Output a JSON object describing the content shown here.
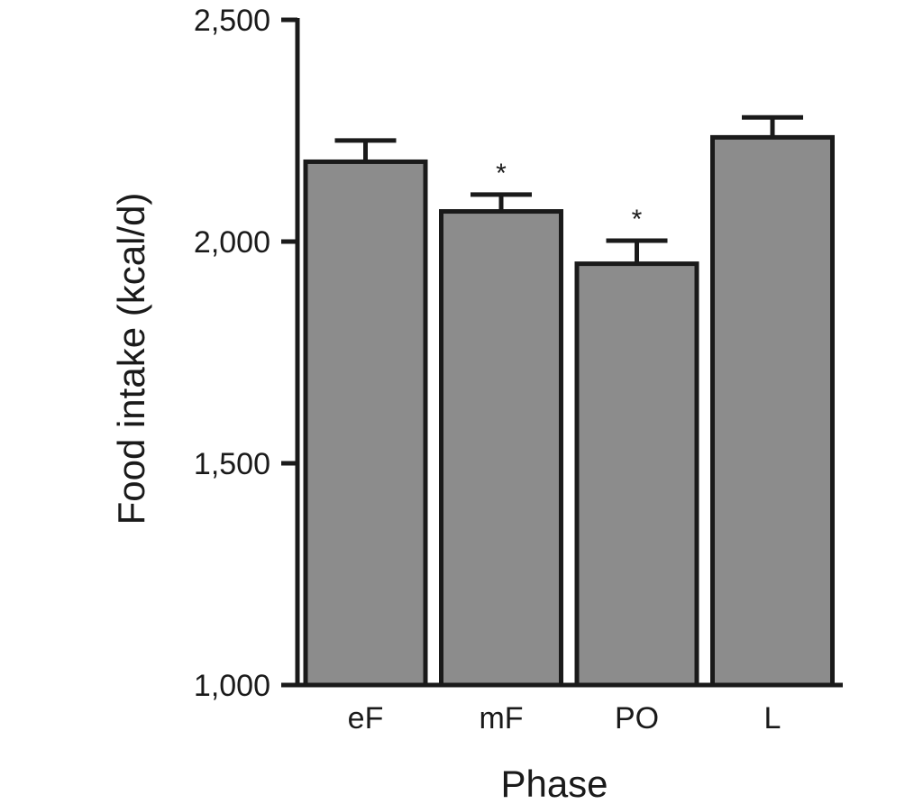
{
  "chart_data": {
    "type": "bar",
    "categories": [
      "eF",
      "mF",
      "PO",
      "L"
    ],
    "values": [
      2180,
      2068,
      1950,
      2235
    ],
    "errors": [
      48,
      38,
      52,
      45
    ],
    "annotations": [
      "",
      "*",
      "*",
      ""
    ],
    "xlabel": "Phase",
    "ylabel": "Food intake (kcal/d)",
    "ylim": [
      1000,
      2500
    ],
    "yticks": [
      1000,
      1500,
      2000,
      2500
    ],
    "ytick_labels": [
      "1,000",
      "1,500",
      "2,000",
      "2,500"
    ],
    "grid": false,
    "bar_color": "#8c8c8c",
    "edge_color": "#1a1a1a"
  }
}
